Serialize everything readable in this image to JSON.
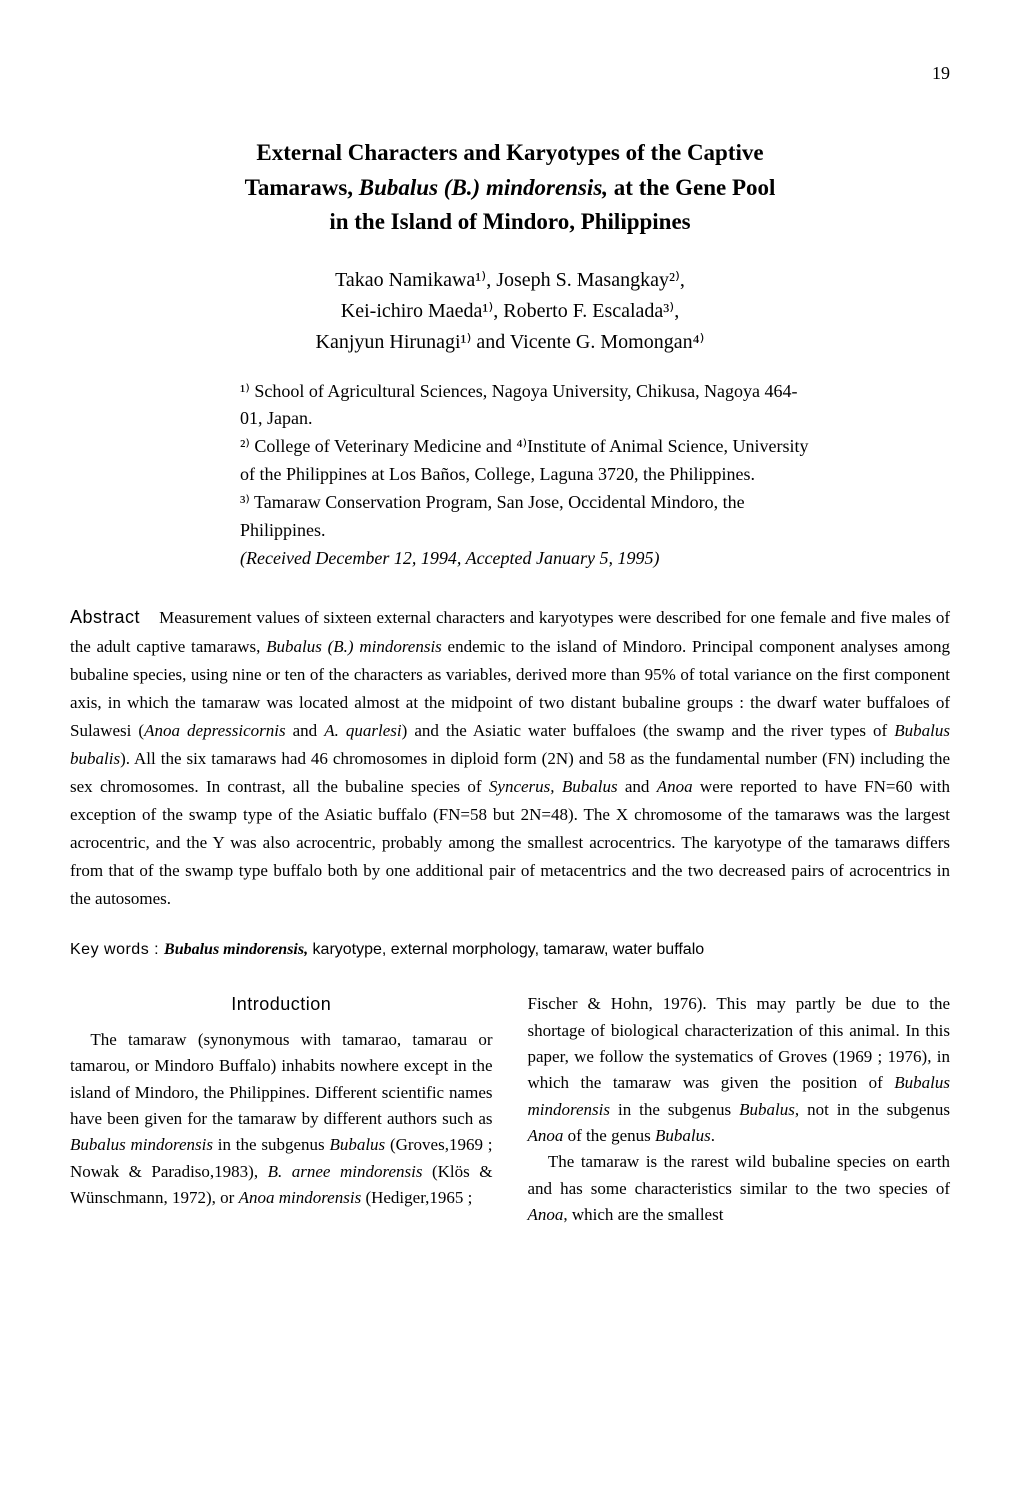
{
  "page_number": "19",
  "title": {
    "line1": "External Characters and Karyotypes of the Captive",
    "line2_pre": "Tamaraws, ",
    "line2_italic": "Bubalus (B.) mindorensis,",
    "line2_post": " at the Gene Pool",
    "line3": "in the Island of Mindoro, Philippines"
  },
  "authors": {
    "line1": "Takao Namikawa¹⁾, Joseph S. Masangkay²⁾,",
    "line2": "Kei-ichiro Maeda¹⁾, Roberto F. Escalada³⁾,",
    "line3": "Kanjyun Hirunagi¹⁾ and Vicente G. Momongan⁴⁾"
  },
  "affiliations": {
    "a1": "¹⁾ School of Agricultural Sciences, Nagoya University, Chikusa, Nagoya 464-01, Japan.",
    "a2": "²⁾ College of Veterinary Medicine and ⁴⁾Institute of Animal Science, University of the Philippines at Los Baños, College, Laguna 3720, the Philippines.",
    "a3": "³⁾ Tamaraw Conservation Program, San Jose, Occidental Mindoro, the Philippines.",
    "received": "(Received December 12, 1994, Accepted January 5, 1995)"
  },
  "abstract": {
    "label": "Abstract",
    "t1": "Measurement values of sixteen external characters and karyotypes were described for one female and five males of the adult captive tamaraws, ",
    "i1": "Bubalus (B.) mindorensis",
    "t2": " endemic to the island of Mindoro. Principal component analyses among bubaline species, using nine or ten of the characters as variables, derived more than 95% of total variance on the first component axis, in which the tamaraw was located almost at the midpoint of two distant bubaline groups : the dwarf water buffaloes of Sulawesi (",
    "i2": "Anoa depressicornis",
    "t3": " and ",
    "i3": "A. quarlesi",
    "t4": ") and the Asiatic water buffaloes (the swamp and the river types of ",
    "i4": "Bubalus bubalis",
    "t5": "). All the six tamaraws had 46 chromosomes in diploid form (2N) and 58 as the fundamental number (FN) including the sex chromosomes. In contrast, all the bubaline species of ",
    "i5": "Syncerus, Bubalus",
    "t6": " and ",
    "i6": "Anoa",
    "t7": " were reported to have FN=60 with exception of the swamp type of the Asiatic buffalo (FN=58 but 2N=48). The X chromosome of the tamaraws was the largest acrocentric, and the Y was also acrocentric, probably among the smallest acrocentrics. The karyotype of the tamaraws differs from that of the swamp type buffalo both by one additional pair of metacentrics and the two decreased pairs of acrocentrics in the autosomes."
  },
  "keywords": {
    "label": "Key words : ",
    "italic": "Bubalus mindorensis,",
    "rest": " karyotype, external morphology, tamaraw, water buffalo"
  },
  "intro_heading": "Introduction",
  "col_left": {
    "p1_t1": "The tamaraw (synonymous with tamarao, tamarau or tamarou, or Mindoro Buffalo) inhabits nowhere except in the island of Mindoro, the Philippines.  Different scientific names have been given for the tamaraw by different authors such as ",
    "p1_i1": "Bubalus mindorensis",
    "p1_t2": " in the subgenus ",
    "p1_i2": "Bubalus",
    "p1_t3": " (Groves,1969 ; Nowak & Paradiso,1983), ",
    "p1_i3": "B. arnee mindorensis",
    "p1_t4": " (Klös & Wünschmann, 1972), or ",
    "p1_i4": "Anoa mindorensis",
    "p1_t5": " (Hediger,1965 ;"
  },
  "col_right": {
    "p1_t1": "Fischer & Hohn, 1976). This may partly be due to the shortage of biological characterization of this animal. In this paper, we follow the systematics of Groves (1969 ; 1976), in which the tamaraw was given the position of ",
    "p1_i1": "Bubalus mindorensis",
    "p1_t2": " in the subgenus ",
    "p1_i2": "Bubalus",
    "p1_t3": ", not in the subgenus ",
    "p1_i3": "Anoa",
    "p1_t4": " of the genus ",
    "p1_i4": "Bubalus",
    "p1_t5": ".",
    "p2_t1": "The tamaraw is the rarest wild bubaline species on earth and has some characteristics similar to the two species of ",
    "p2_i1": "Anoa",
    "p2_t2": ", which are the smallest"
  }
}
